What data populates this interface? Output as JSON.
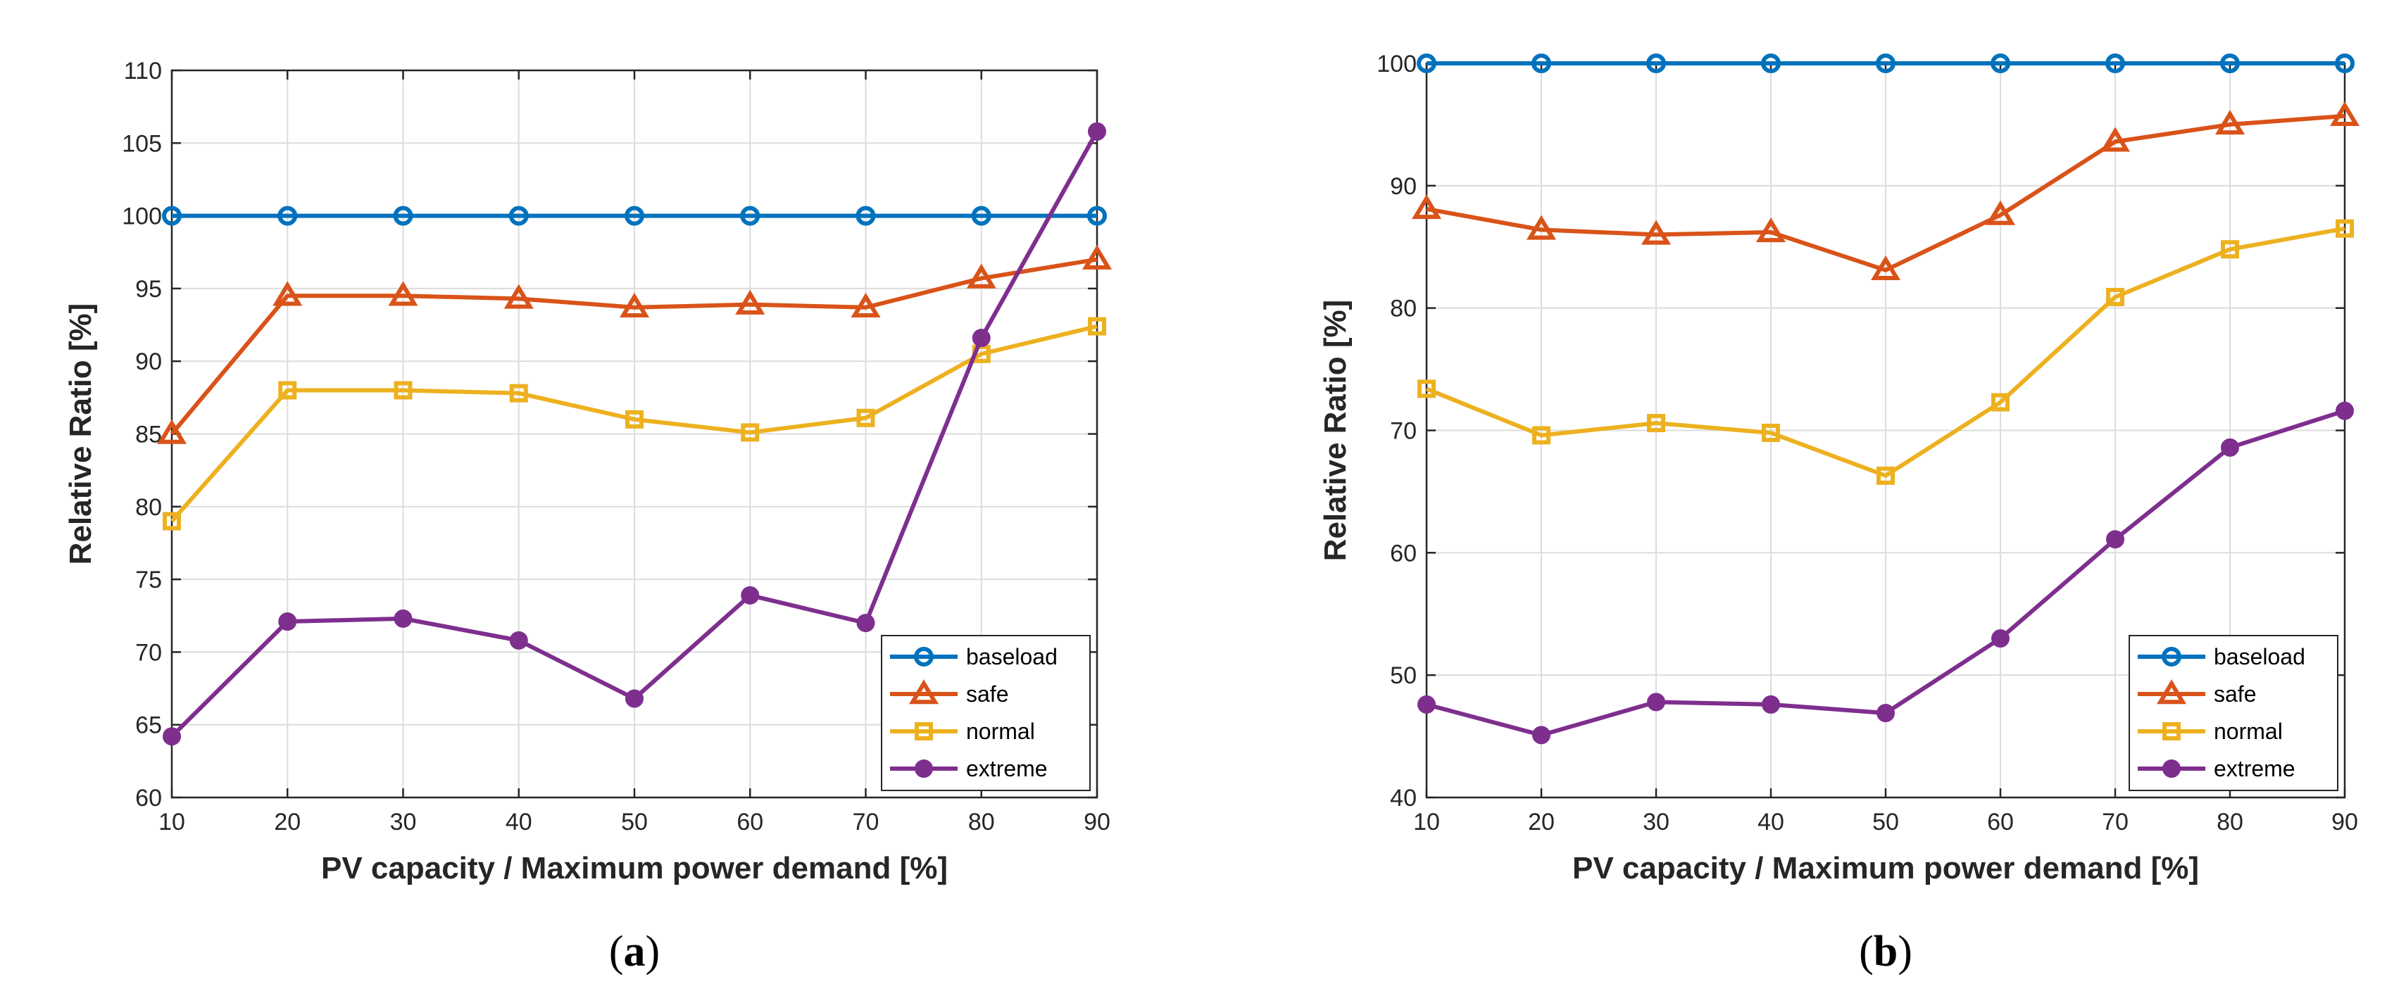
{
  "chart_data": [
    {
      "type": "line",
      "panel_label": "a",
      "xlabel": "PV capacity / Maximum power demand [%]",
      "ylabel": "Relative Ratio [%]",
      "x": [
        10,
        20,
        30,
        40,
        50,
        60,
        70,
        80,
        90
      ],
      "xlim": [
        10,
        90
      ],
      "ylim": [
        60,
        110
      ],
      "xticks": [
        10,
        20,
        30,
        40,
        50,
        60,
        70,
        80,
        90
      ],
      "yticks": [
        60,
        65,
        70,
        75,
        80,
        85,
        90,
        95,
        100,
        105,
        110
      ],
      "grid": true,
      "legend_position": "bottom-right",
      "series": [
        {
          "name": "baseload",
          "color": "#0072BD",
          "marker": "circle-open",
          "values": [
            100,
            100,
            100,
            100,
            100,
            100,
            100,
            100,
            100
          ]
        },
        {
          "name": "safe",
          "color": "#D95319",
          "marker": "triangle-open",
          "values": [
            85.0,
            94.5,
            94.5,
            94.3,
            93.7,
            93.9,
            93.7,
            95.7,
            97.0
          ]
        },
        {
          "name": "normal",
          "color": "#EDB120",
          "marker": "square-open",
          "values": [
            79.0,
            88.0,
            88.0,
            87.8,
            86.0,
            85.1,
            86.1,
            90.5,
            92.4
          ]
        },
        {
          "name": "extreme",
          "color": "#7E2F8E",
          "marker": "circle-filled",
          "values": [
            64.2,
            72.1,
            72.3,
            70.8,
            66.8,
            73.9,
            72.0,
            91.6,
            105.8
          ]
        }
      ]
    },
    {
      "type": "line",
      "panel_label": "b",
      "xlabel": "PV capacity / Maximum power demand [%]",
      "ylabel": "Relative Ratio [%]",
      "x": [
        10,
        20,
        30,
        40,
        50,
        60,
        70,
        80,
        90
      ],
      "xlim": [
        10,
        90
      ],
      "ylim": [
        40,
        100
      ],
      "xticks": [
        10,
        20,
        30,
        40,
        50,
        60,
        70,
        80,
        90
      ],
      "yticks": [
        40,
        50,
        60,
        70,
        80,
        90,
        100
      ],
      "grid": true,
      "legend_position": "bottom-right",
      "series": [
        {
          "name": "baseload",
          "color": "#0072BD",
          "marker": "circle-open",
          "values": [
            100,
            100,
            100,
            100,
            100,
            100,
            100,
            100,
            100
          ]
        },
        {
          "name": "safe",
          "color": "#D95319",
          "marker": "triangle-open",
          "values": [
            88.1,
            86.4,
            86.0,
            86.2,
            83.1,
            87.6,
            93.6,
            95.0,
            95.7
          ]
        },
        {
          "name": "normal",
          "color": "#EDB120",
          "marker": "square-open",
          "values": [
            73.4,
            69.6,
            70.6,
            69.8,
            66.3,
            72.3,
            80.9,
            84.8,
            86.5
          ]
        },
        {
          "name": "extreme",
          "color": "#7E2F8E",
          "marker": "circle-filled",
          "values": [
            47.6,
            45.1,
            47.8,
            47.6,
            46.9,
            53.0,
            61.1,
            68.6,
            71.6
          ]
        }
      ]
    }
  ]
}
